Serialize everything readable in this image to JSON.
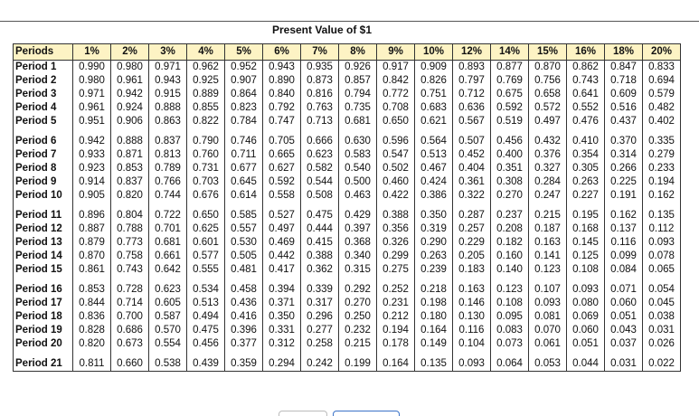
{
  "title": "Present Value of $1",
  "table": {
    "columns": [
      "Periods",
      "1%",
      "2%",
      "3%",
      "4%",
      "5%",
      "6%",
      "7%",
      "8%",
      "9%",
      "10%",
      "12%",
      "14%",
      "15%",
      "16%",
      "18%",
      "20%"
    ],
    "rows": [
      [
        "Period 1",
        "0.990",
        "0.980",
        "0.971",
        "0.962",
        "0.952",
        "0.943",
        "0.935",
        "0.926",
        "0.917",
        "0.909",
        "0.893",
        "0.877",
        "0.870",
        "0.862",
        "0.847",
        "0.833"
      ],
      [
        "Period 2",
        "0.980",
        "0.961",
        "0.943",
        "0.925",
        "0.907",
        "0.890",
        "0.873",
        "0.857",
        "0.842",
        "0.826",
        "0.797",
        "0.769",
        "0.756",
        "0.743",
        "0.718",
        "0.694"
      ],
      [
        "Period 3",
        "0.971",
        "0.942",
        "0.915",
        "0.889",
        "0.864",
        "0.840",
        "0.816",
        "0.794",
        "0.772",
        "0.751",
        "0.712",
        "0.675",
        "0.658",
        "0.641",
        "0.609",
        "0.579"
      ],
      [
        "Period 4",
        "0.961",
        "0.924",
        "0.888",
        "0.855",
        "0.823",
        "0.792",
        "0.763",
        "0.735",
        "0.708",
        "0.683",
        "0.636",
        "0.592",
        "0.572",
        "0.552",
        "0.516",
        "0.482"
      ],
      [
        "Period 5",
        "0.951",
        "0.906",
        "0.863",
        "0.822",
        "0.784",
        "0.747",
        "0.713",
        "0.681",
        "0.650",
        "0.621",
        "0.567",
        "0.519",
        "0.497",
        "0.476",
        "0.437",
        "0.402"
      ],
      [
        "Period 6",
        "0.942",
        "0.888",
        "0.837",
        "0.790",
        "0.746",
        "0.705",
        "0.666",
        "0.630",
        "0.596",
        "0.564",
        "0.507",
        "0.456",
        "0.432",
        "0.410",
        "0.370",
        "0.335"
      ],
      [
        "Period 7",
        "0.933",
        "0.871",
        "0.813",
        "0.760",
        "0.711",
        "0.665",
        "0.623",
        "0.583",
        "0.547",
        "0.513",
        "0.452",
        "0.400",
        "0.376",
        "0.354",
        "0.314",
        "0.279"
      ],
      [
        "Period 8",
        "0.923",
        "0.853",
        "0.789",
        "0.731",
        "0.677",
        "0.627",
        "0.582",
        "0.540",
        "0.502",
        "0.467",
        "0.404",
        "0.351",
        "0.327",
        "0.305",
        "0.266",
        "0.233"
      ],
      [
        "Period 9",
        "0.914",
        "0.837",
        "0.766",
        "0.703",
        "0.645",
        "0.592",
        "0.544",
        "0.500",
        "0.460",
        "0.424",
        "0.361",
        "0.308",
        "0.284",
        "0.263",
        "0.225",
        "0.194"
      ],
      [
        "Period 10",
        "0.905",
        "0.820",
        "0.744",
        "0.676",
        "0.614",
        "0.558",
        "0.508",
        "0.463",
        "0.422",
        "0.386",
        "0.322",
        "0.270",
        "0.247",
        "0.227",
        "0.191",
        "0.162"
      ],
      [
        "Period 11",
        "0.896",
        "0.804",
        "0.722",
        "0.650",
        "0.585",
        "0.527",
        "0.475",
        "0.429",
        "0.388",
        "0.350",
        "0.287",
        "0.237",
        "0.215",
        "0.195",
        "0.162",
        "0.135"
      ],
      [
        "Period 12",
        "0.887",
        "0.788",
        "0.701",
        "0.625",
        "0.557",
        "0.497",
        "0.444",
        "0.397",
        "0.356",
        "0.319",
        "0.257",
        "0.208",
        "0.187",
        "0.168",
        "0.137",
        "0.112"
      ],
      [
        "Period 13",
        "0.879",
        "0.773",
        "0.681",
        "0.601",
        "0.530",
        "0.469",
        "0.415",
        "0.368",
        "0.326",
        "0.290",
        "0.229",
        "0.182",
        "0.163",
        "0.145",
        "0.116",
        "0.093"
      ],
      [
        "Period 14",
        "0.870",
        "0.758",
        "0.661",
        "0.577",
        "0.505",
        "0.442",
        "0.388",
        "0.340",
        "0.299",
        "0.263",
        "0.205",
        "0.160",
        "0.141",
        "0.125",
        "0.099",
        "0.078"
      ],
      [
        "Period 15",
        "0.861",
        "0.743",
        "0.642",
        "0.555",
        "0.481",
        "0.417",
        "0.362",
        "0.315",
        "0.275",
        "0.239",
        "0.183",
        "0.140",
        "0.123",
        "0.108",
        "0.084",
        "0.065"
      ],
      [
        "Period 16",
        "0.853",
        "0.728",
        "0.623",
        "0.534",
        "0.458",
        "0.394",
        "0.339",
        "0.292",
        "0.252",
        "0.218",
        "0.163",
        "0.123",
        "0.107",
        "0.093",
        "0.071",
        "0.054"
      ],
      [
        "Period 17",
        "0.844",
        "0.714",
        "0.605",
        "0.513",
        "0.436",
        "0.371",
        "0.317",
        "0.270",
        "0.231",
        "0.198",
        "0.146",
        "0.108",
        "0.093",
        "0.080",
        "0.060",
        "0.045"
      ],
      [
        "Period 18",
        "0.836",
        "0.700",
        "0.587",
        "0.494",
        "0.416",
        "0.350",
        "0.296",
        "0.250",
        "0.212",
        "0.180",
        "0.130",
        "0.095",
        "0.081",
        "0.069",
        "0.051",
        "0.038"
      ],
      [
        "Period 19",
        "0.828",
        "0.686",
        "0.570",
        "0.475",
        "0.396",
        "0.331",
        "0.277",
        "0.232",
        "0.194",
        "0.164",
        "0.116",
        "0.083",
        "0.070",
        "0.060",
        "0.043",
        "0.031"
      ],
      [
        "Period 20",
        "0.820",
        "0.673",
        "0.554",
        "0.456",
        "0.377",
        "0.312",
        "0.258",
        "0.215",
        "0.178",
        "0.149",
        "0.104",
        "0.073",
        "0.061",
        "0.051",
        "0.037",
        "0.026"
      ],
      [
        "Period 21",
        "0.811",
        "0.660",
        "0.538",
        "0.439",
        "0.359",
        "0.294",
        "0.242",
        "0.199",
        "0.164",
        "0.135",
        "0.093",
        "0.064",
        "0.053",
        "0.044",
        "0.031",
        "0.022"
      ]
    ]
  }
}
